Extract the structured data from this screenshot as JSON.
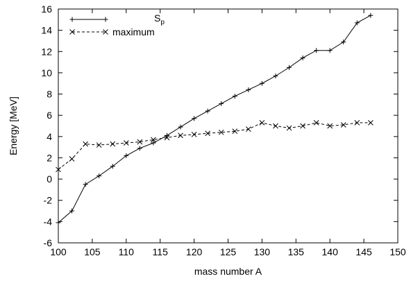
{
  "chart_data": {
    "type": "line",
    "title": "",
    "xlabel": "mass number A",
    "ylabel": "Energy [MeV]",
    "xlim": [
      100,
      150
    ],
    "ylim": [
      -6,
      16
    ],
    "xticks": [
      100,
      105,
      110,
      115,
      120,
      125,
      130,
      135,
      140,
      145,
      150
    ],
    "yticks": [
      -6,
      -4,
      -2,
      0,
      2,
      4,
      6,
      8,
      10,
      12,
      14,
      16
    ],
    "grid": false,
    "legend_position": "top-left",
    "series": [
      {
        "name": "S",
        "name_sub": "p",
        "marker": "plus",
        "line": "solid",
        "color": "#000000",
        "x": [
          100,
          102,
          104,
          106,
          108,
          110,
          112,
          114,
          116,
          118,
          120,
          122,
          124,
          126,
          128,
          130,
          132,
          134,
          136,
          138,
          140,
          142,
          144,
          146
        ],
        "y": [
          -4.1,
          -3.0,
          -0.5,
          0.3,
          1.2,
          2.2,
          2.9,
          3.4,
          4.1,
          4.9,
          5.7,
          6.4,
          7.1,
          7.8,
          8.4,
          9.0,
          9.7,
          10.5,
          11.4,
          12.1,
          12.1,
          12.9,
          14.7,
          15.4
        ]
      },
      {
        "name": "maximum",
        "marker": "cross",
        "line": "dashed",
        "color": "#000000",
        "x": [
          100,
          102,
          104,
          106,
          108,
          110,
          112,
          114,
          116,
          118,
          120,
          122,
          124,
          126,
          128,
          130,
          132,
          134,
          136,
          138,
          140,
          142,
          144,
          146
        ],
        "y": [
          0.9,
          1.9,
          3.3,
          3.2,
          3.3,
          3.4,
          3.5,
          3.7,
          3.9,
          4.1,
          4.2,
          4.3,
          4.4,
          4.5,
          4.7,
          5.3,
          5.0,
          4.8,
          5.0,
          5.3,
          5.0,
          5.1,
          5.3,
          5.3
        ]
      }
    ]
  }
}
